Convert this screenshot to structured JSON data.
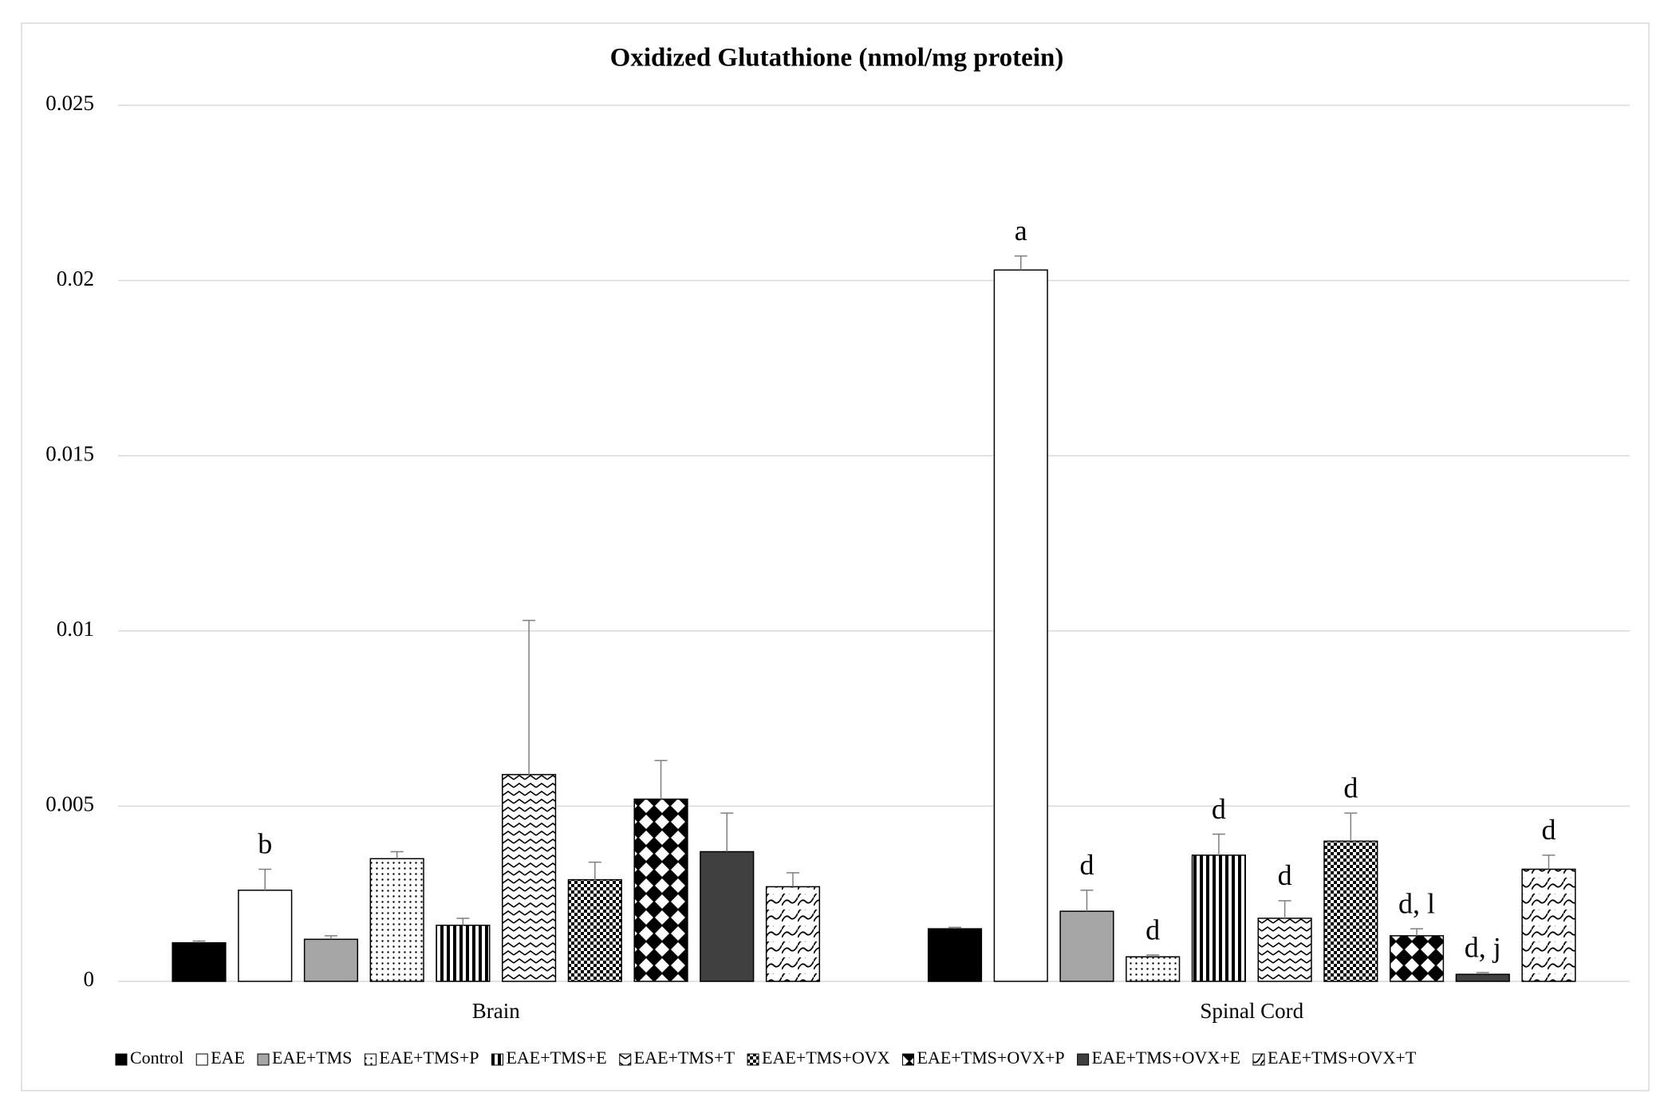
{
  "chart_data": {
    "type": "bar",
    "title": "Oxidized Glutathione (nmol/mg protein)",
    "categories": [
      "Brain",
      "Spinal Cord"
    ],
    "ylim": [
      0,
      0.025
    ],
    "yticks": [
      0,
      0.005,
      0.01,
      0.015,
      0.02,
      0.025
    ],
    "grid": true,
    "legend": "bottom",
    "series": [
      {
        "name": "Control",
        "color": "#000000",
        "pattern": "solid",
        "values": [
          0.0011,
          0.0015
        ],
        "errors": [
          5e-05,
          4e-05
        ],
        "annotations": [
          null,
          null
        ]
      },
      {
        "name": "EAE",
        "color": "#ffffff",
        "pattern": "solid",
        "values": [
          0.0026,
          0.0203
        ],
        "errors": [
          0.0006,
          0.0004
        ],
        "annotations": [
          "b",
          "a"
        ]
      },
      {
        "name": "EAE+TMS",
        "color": "#a6a6a6",
        "pattern": "solid",
        "values": [
          0.0012,
          0.002
        ],
        "errors": [
          0.0001,
          0.0006
        ],
        "annotations": [
          null,
          "d"
        ]
      },
      {
        "name": "EAE+TMS+P",
        "color": "#000000",
        "pattern": "dots",
        "values": [
          0.0035,
          0.0007
        ],
        "errors": [
          0.0002,
          5e-05
        ],
        "annotations": [
          null,
          "d"
        ]
      },
      {
        "name": "EAE+TMS+E",
        "color": "#000000",
        "pattern": "stripes",
        "values": [
          0.0016,
          0.0036
        ],
        "errors": [
          0.0002,
          0.0006
        ],
        "annotations": [
          null,
          "d"
        ]
      },
      {
        "name": "EAE+TMS+T",
        "color": "#000000",
        "pattern": "zigzag",
        "values": [
          0.0059,
          0.0018
        ],
        "errors": [
          0.0044,
          0.0005
        ],
        "annotations": [
          null,
          "d"
        ]
      },
      {
        "name": "EAE+TMS+OVX",
        "color": "#000000",
        "pattern": "checker",
        "values": [
          0.0029,
          0.004
        ],
        "errors": [
          0.0005,
          0.0008
        ],
        "annotations": [
          null,
          "d"
        ]
      },
      {
        "name": "EAE+TMS+OVX+P",
        "color": "#000000",
        "pattern": "diamonds",
        "values": [
          0.0052,
          0.0013
        ],
        "errors": [
          0.0011,
          0.0002
        ],
        "annotations": [
          null,
          "d, l"
        ]
      },
      {
        "name": "EAE+TMS+OVX+E",
        "color": "#404040",
        "pattern": "solid",
        "values": [
          0.0037,
          0.0002
        ],
        "errors": [
          0.0011,
          5e-05
        ],
        "annotations": [
          null,
          "d, j"
        ]
      },
      {
        "name": "EAE+TMS+OVX+T",
        "color": "#000000",
        "pattern": "waves",
        "values": [
          0.0027,
          0.0032
        ],
        "errors": [
          0.0004,
          0.0004
        ],
        "annotations": [
          null,
          "d"
        ]
      }
    ]
  }
}
